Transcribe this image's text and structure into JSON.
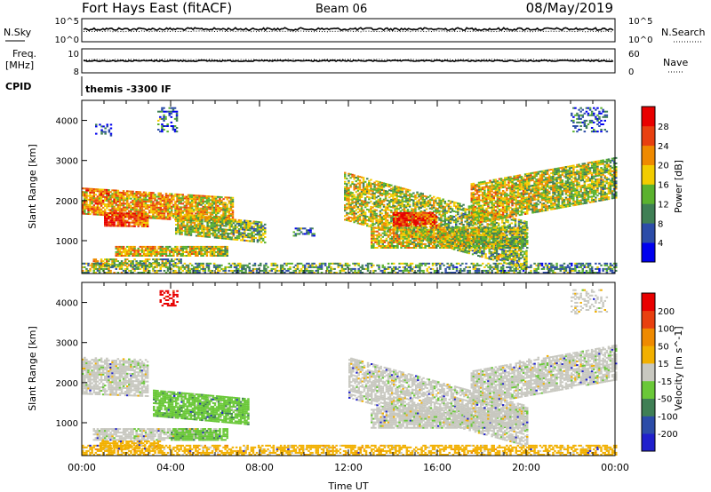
{
  "header": {
    "title": "Fort Hays East (fitACF)",
    "beam": "Beam 06",
    "date": "08/May/2019"
  },
  "chart_data": [
    {
      "type": "line",
      "name": "noise-panel",
      "left_label": "N.Sky",
      "right_label": "N.Search",
      "left_ticks": [
        "10^5",
        "10^0"
      ],
      "right_ticks": [
        "10^5",
        "10^0"
      ],
      "series": [
        {
          "name": "N.Sky",
          "style": "solid",
          "level": 0.55
        },
        {
          "name": "N.Search",
          "style": "dotted",
          "level": 0.45
        }
      ]
    },
    {
      "type": "line",
      "name": "frequency-panel",
      "left_label": "Freq.",
      "left_unit": "[MHz]",
      "right_label": "Nave",
      "left_ticks": [
        "10",
        "8"
      ],
      "right_ticks": [
        "60",
        "0"
      ],
      "series": [
        {
          "name": "Freq.",
          "style": "solid",
          "level": 0.5
        },
        {
          "name": "Nave",
          "style": "dotted",
          "level": 0.55
        }
      ]
    },
    {
      "type": "text",
      "name": "cpid-panel",
      "label": "CPID",
      "value": "themis -3300 IF"
    },
    {
      "type": "heatmap",
      "name": "power",
      "ylabel": "Slant Range [km]",
      "xlim": [
        0,
        24
      ],
      "ylim": [
        180,
        4500
      ],
      "yticks": [
        "1000",
        "2000",
        "3000",
        "4000"
      ],
      "colorbar_label": "Power [dB]",
      "colorbar_ticks": [
        "28",
        "24",
        "20",
        "16",
        "12",
        "8",
        "4"
      ],
      "colors": [
        "#0000ee",
        "#2c4ca8",
        "#3f7f55",
        "#5bb22e",
        "#f2cc00",
        "#ef8a00",
        "#e84010",
        "#e80000"
      ],
      "mode": "power",
      "regions": [
        {
          "t0": 0.0,
          "t1": 6.8,
          "r0": 1650,
          "r1": 2300,
          "slope": -35,
          "v": 0.7,
          "d": 0.85
        },
        {
          "t0": 1.0,
          "t1": 3.0,
          "r0": 1350,
          "r1": 1700,
          "slope": -10,
          "v": 0.9,
          "d": 0.9
        },
        {
          "t0": 4.2,
          "t1": 8.2,
          "r0": 1150,
          "r1": 1650,
          "slope": -55,
          "v": 0.55,
          "d": 0.8
        },
        {
          "t0": 1.5,
          "t1": 6.5,
          "r0": 600,
          "r1": 850,
          "slope": 0,
          "v": 0.65,
          "d": 0.85
        },
        {
          "t0": 0.5,
          "t1": 4.5,
          "r0": 330,
          "r1": 520,
          "slope": 0,
          "v": 0.55,
          "d": 0.7
        },
        {
          "t0": 0.0,
          "t1": 24.0,
          "r0": 180,
          "r1": 420,
          "slope": 0,
          "v": 0.45,
          "d": 0.55
        },
        {
          "t0": 11.8,
          "t1": 20.0,
          "r0": 1500,
          "r1": 2700,
          "slope": -150,
          "v": 0.55,
          "d": 0.7
        },
        {
          "t0": 13.0,
          "t1": 20.0,
          "r0": 800,
          "r1": 1300,
          "slope": 0,
          "v": 0.6,
          "d": 0.8
        },
        {
          "t0": 17.5,
          "t1": 24.0,
          "r0": 1400,
          "r1": 2400,
          "slope": 100,
          "v": 0.6,
          "d": 0.8
        },
        {
          "t0": 14.0,
          "t1": 16.0,
          "r0": 1350,
          "r1": 1700,
          "slope": 0,
          "v": 0.9,
          "d": 0.9
        },
        {
          "t0": 3.4,
          "t1": 4.3,
          "r0": 3700,
          "r1": 4300,
          "slope": 0,
          "v": 0.3,
          "d": 0.35
        },
        {
          "t0": 0.6,
          "t1": 1.4,
          "r0": 3600,
          "r1": 3900,
          "slope": 0,
          "v": 0.2,
          "d": 0.25
        },
        {
          "t0": 22.0,
          "t1": 23.6,
          "r0": 3700,
          "r1": 4300,
          "slope": 0,
          "v": 0.3,
          "d": 0.35
        },
        {
          "t0": 9.5,
          "t1": 10.5,
          "r0": 1100,
          "r1": 1300,
          "slope": 0,
          "v": 0.35,
          "d": 0.6
        }
      ]
    },
    {
      "type": "heatmap",
      "name": "velocity",
      "ylabel": "Slant Range [km]",
      "xlabel": "Time UT",
      "xlim": [
        0,
        24
      ],
      "ylim": [
        180,
        4500
      ],
      "xticks": [
        "00:00",
        "04:00",
        "08:00",
        "12:00",
        "16:00",
        "20:00",
        "00:00"
      ],
      "yticks": [
        "1000",
        "2000",
        "3000",
        "4000"
      ],
      "colorbar_label": "Velocity [m s^-1]",
      "colorbar_ticks": [
        "200",
        "100",
        "50",
        "15",
        "-15",
        "-50",
        "-100",
        "-200"
      ],
      "colors": [
        "#2020cc",
        "#2c4ca8",
        "#3f7f55",
        "#6ac838",
        "#c8c8c0",
        "#f2b000",
        "#ef8a00",
        "#e84010",
        "#e80000"
      ],
      "mode": "velocity",
      "regions": [
        {
          "t0": 0.0,
          "t1": 3.0,
          "r0": 1700,
          "r1": 2600,
          "slope": -20,
          "c": 4,
          "d": 0.8
        },
        {
          "t0": 3.2,
          "t1": 7.5,
          "r0": 1150,
          "r1": 1800,
          "slope": -50,
          "c": 3,
          "d": 0.85
        },
        {
          "t0": 0.5,
          "t1": 6.0,
          "r0": 550,
          "r1": 850,
          "slope": 0,
          "c": 4,
          "d": 0.8
        },
        {
          "t0": 4.0,
          "t1": 6.5,
          "r0": 550,
          "r1": 850,
          "slope": 0,
          "c": 3,
          "d": 0.8
        },
        {
          "t0": 0.0,
          "t1": 24.0,
          "r0": 180,
          "r1": 420,
          "slope": 0,
          "c": 5,
          "d": 0.6
        },
        {
          "t0": 0.8,
          "t1": 3.5,
          "r0": 330,
          "r1": 520,
          "slope": 0,
          "c": 5,
          "d": 0.7
        },
        {
          "t0": 12.0,
          "t1": 20.0,
          "r0": 1600,
          "r1": 2600,
          "slope": -150,
          "c": 4,
          "d": 0.7
        },
        {
          "t0": 13.0,
          "t1": 20.0,
          "r0": 850,
          "r1": 1350,
          "slope": 0,
          "c": 4,
          "d": 0.8
        },
        {
          "t0": 17.5,
          "t1": 24.0,
          "r0": 1400,
          "r1": 2300,
          "slope": 100,
          "c": 4,
          "d": 0.8
        },
        {
          "t0": 3.5,
          "t1": 4.3,
          "r0": 3900,
          "r1": 4300,
          "slope": 0,
          "c": 8,
          "d": 0.45
        },
        {
          "t0": 22.0,
          "t1": 23.6,
          "r0": 3700,
          "r1": 4300,
          "slope": 0,
          "c": 4,
          "d": 0.3
        }
      ]
    }
  ]
}
